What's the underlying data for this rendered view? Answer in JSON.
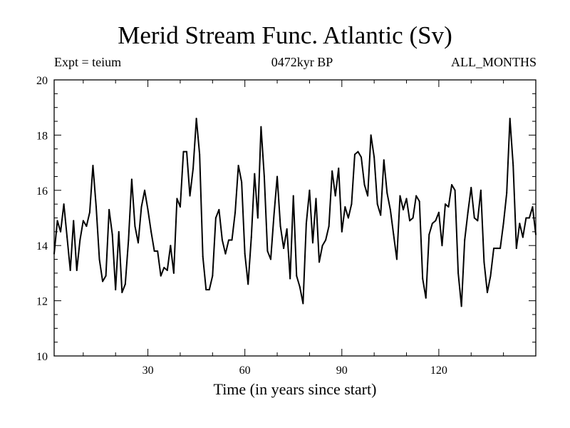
{
  "chart_data": {
    "type": "line",
    "title": "Merid Stream Func. Atlantic (Sv)",
    "subtitle_left": "Expt = teium",
    "subtitle_center": "0472kyr BP",
    "subtitle_right": "ALL_MONTHS",
    "xlabel": "Time (in years since start)",
    "ylabel": "",
    "xlim": [
      1,
      150
    ],
    "ylim": [
      10,
      20
    ],
    "x_ticks": [
      30,
      60,
      90,
      120
    ],
    "y_ticks": [
      10,
      12,
      14,
      16,
      18,
      20
    ],
    "grid": false,
    "series": [
      {
        "name": "Merid Stream Func. Atlantic",
        "color": "#000000",
        "x": [
          1,
          2,
          3,
          4,
          5,
          6,
          7,
          8,
          9,
          10,
          11,
          12,
          13,
          14,
          15,
          16,
          17,
          18,
          19,
          20,
          21,
          22,
          23,
          24,
          25,
          26,
          27,
          28,
          29,
          30,
          31,
          32,
          33,
          34,
          35,
          36,
          37,
          38,
          39,
          40,
          41,
          42,
          43,
          44,
          45,
          46,
          47,
          48,
          49,
          50,
          51,
          52,
          53,
          54,
          55,
          56,
          57,
          58,
          59,
          60,
          61,
          62,
          63,
          64,
          65,
          66,
          67,
          68,
          69,
          70,
          71,
          72,
          73,
          74,
          75,
          76,
          77,
          78,
          79,
          80,
          81,
          82,
          83,
          84,
          85,
          86,
          87,
          88,
          89,
          90,
          91,
          92,
          93,
          94,
          95,
          96,
          97,
          98,
          99,
          100,
          101,
          102,
          103,
          104,
          105,
          106,
          107,
          108,
          109,
          110,
          111,
          112,
          113,
          114,
          115,
          116,
          117,
          118,
          119,
          120,
          121,
          122,
          123,
          124,
          125,
          126,
          127,
          128,
          129,
          130,
          131,
          132,
          133,
          134,
          135,
          136,
          137,
          138,
          139,
          140,
          141,
          142,
          143,
          144,
          145,
          146,
          147,
          148,
          149,
          150
        ],
        "values": [
          13.7,
          14.9,
          14.5,
          15.5,
          14.3,
          13.1,
          14.9,
          13.1,
          14.2,
          14.9,
          14.7,
          15.2,
          16.9,
          15.4,
          13.5,
          12.7,
          12.9,
          15.3,
          14.4,
          12.4,
          14.5,
          12.3,
          12.6,
          14.2,
          16.4,
          14.7,
          14.1,
          15.4,
          16.0,
          15.3,
          14.5,
          13.8,
          13.8,
          12.9,
          13.2,
          13.1,
          14.0,
          13.0,
          15.7,
          15.4,
          17.4,
          17.4,
          15.8,
          16.8,
          18.6,
          17.3,
          13.6,
          12.4,
          12.4,
          12.9,
          15.0,
          15.3,
          14.2,
          13.7,
          14.2,
          14.2,
          15.2,
          16.9,
          16.3,
          13.7,
          12.6,
          14.3,
          16.6,
          15.0,
          18.3,
          16.5,
          13.8,
          13.5,
          15.1,
          16.5,
          14.7,
          13.9,
          14.6,
          12.8,
          15.8,
          12.9,
          12.5,
          11.9,
          14.8,
          16.0,
          14.1,
          15.7,
          13.4,
          14.0,
          14.2,
          14.7,
          16.7,
          15.8,
          16.8,
          14.5,
          15.4,
          15.0,
          15.5,
          17.3,
          17.4,
          17.2,
          16.2,
          15.8,
          18.0,
          17.2,
          15.5,
          15.1,
          17.1,
          15.9,
          15.3,
          14.4,
          13.5,
          15.8,
          15.3,
          15.7,
          14.9,
          15.0,
          15.8,
          15.6,
          12.8,
          12.1,
          14.4,
          14.8,
          14.9,
          15.2,
          14.0,
          15.5,
          15.4,
          16.2,
          16.0,
          13.0,
          11.8,
          14.2,
          15.2,
          16.1,
          15.0,
          14.9,
          16.0,
          13.4,
          12.3,
          12.9,
          13.9,
          13.9,
          13.9,
          14.8,
          15.9,
          18.6,
          16.9,
          13.9,
          14.8,
          14.3,
          15.0,
          15.0,
          15.4,
          14.4
        ]
      }
    ]
  }
}
